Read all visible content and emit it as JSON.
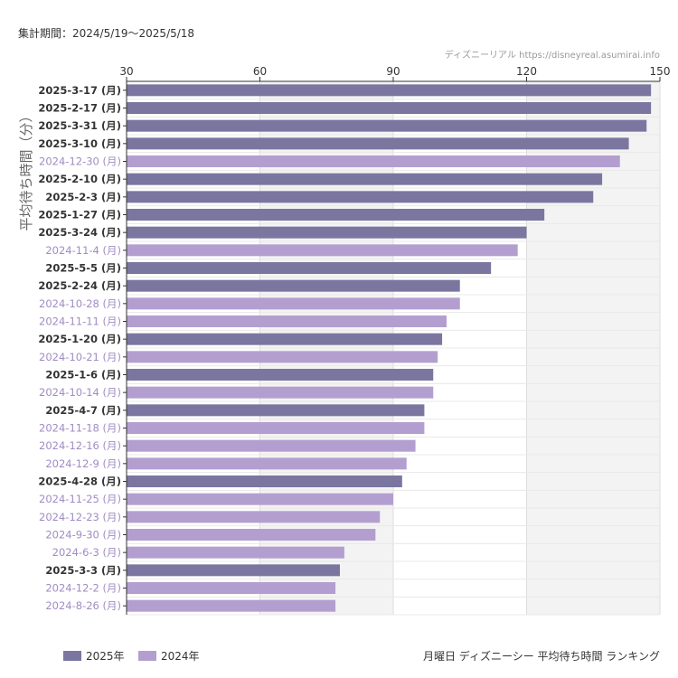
{
  "header": {
    "period": "集計期間：2024/5/19〜2025/5/18",
    "credit": "ディズニーリアル https://disneyreal.asumirai.info"
  },
  "footer": {
    "caption": "月曜日 ディズニーシー 平均待ち時間 ランキング"
  },
  "chart_data": {
    "type": "bar",
    "orientation": "horizontal",
    "ylabel": "平均待ち時間（分）",
    "xlim": [
      30,
      150
    ],
    "xticks": [
      30,
      60,
      90,
      120,
      150
    ],
    "grid": true,
    "legend_position": "bottom-left",
    "series": [
      {
        "name": "2025年",
        "color": "#7b76a0"
      },
      {
        "name": "2024年",
        "color": "#b39fcf"
      }
    ],
    "categories": [
      {
        "label": "2025-3-17 (月)",
        "value": 148,
        "year": "2025年"
      },
      {
        "label": "2025-2-17 (月)",
        "value": 148,
        "year": "2025年"
      },
      {
        "label": "2025-3-31 (月)",
        "value": 147,
        "year": "2025年"
      },
      {
        "label": "2025-3-10 (月)",
        "value": 143,
        "year": "2025年"
      },
      {
        "label": "2024-12-30 (月)",
        "value": 141,
        "year": "2024年"
      },
      {
        "label": "2025-2-10 (月)",
        "value": 137,
        "year": "2025年"
      },
      {
        "label": "2025-2-3 (月)",
        "value": 135,
        "year": "2025年"
      },
      {
        "label": "2025-1-27 (月)",
        "value": 124,
        "year": "2025年"
      },
      {
        "label": "2025-3-24 (月)",
        "value": 120,
        "year": "2025年"
      },
      {
        "label": "2024-11-4 (月)",
        "value": 118,
        "year": "2024年"
      },
      {
        "label": "2025-5-5 (月)",
        "value": 112,
        "year": "2025年"
      },
      {
        "label": "2025-2-24 (月)",
        "value": 105,
        "year": "2025年"
      },
      {
        "label": "2024-10-28 (月)",
        "value": 105,
        "year": "2024年"
      },
      {
        "label": "2024-11-11 (月)",
        "value": 102,
        "year": "2024年"
      },
      {
        "label": "2025-1-20 (月)",
        "value": 101,
        "year": "2025年"
      },
      {
        "label": "2024-10-21 (月)",
        "value": 100,
        "year": "2024年"
      },
      {
        "label": "2025-1-6 (月)",
        "value": 99,
        "year": "2025年"
      },
      {
        "label": "2024-10-14 (月)",
        "value": 99,
        "year": "2024年"
      },
      {
        "label": "2025-4-7 (月)",
        "value": 97,
        "year": "2025年"
      },
      {
        "label": "2024-11-18 (月)",
        "value": 97,
        "year": "2024年"
      },
      {
        "label": "2024-12-16 (月)",
        "value": 95,
        "year": "2024年"
      },
      {
        "label": "2024-12-9 (月)",
        "value": 93,
        "year": "2024年"
      },
      {
        "label": "2025-4-28 (月)",
        "value": 92,
        "year": "2025年"
      },
      {
        "label": "2024-11-25 (月)",
        "value": 90,
        "year": "2024年"
      },
      {
        "label": "2024-12-23 (月)",
        "value": 87,
        "year": "2024年"
      },
      {
        "label": "2024-9-30 (月)",
        "value": 86,
        "year": "2024年"
      },
      {
        "label": "2024-6-3 (月)",
        "value": 79,
        "year": "2024年"
      },
      {
        "label": "2025-3-3 (月)",
        "value": 78,
        "year": "2025年"
      },
      {
        "label": "2024-12-2 (月)",
        "value": 77,
        "year": "2024年"
      },
      {
        "label": "2024-8-26 (月)",
        "value": 77,
        "year": "2024年"
      }
    ]
  }
}
